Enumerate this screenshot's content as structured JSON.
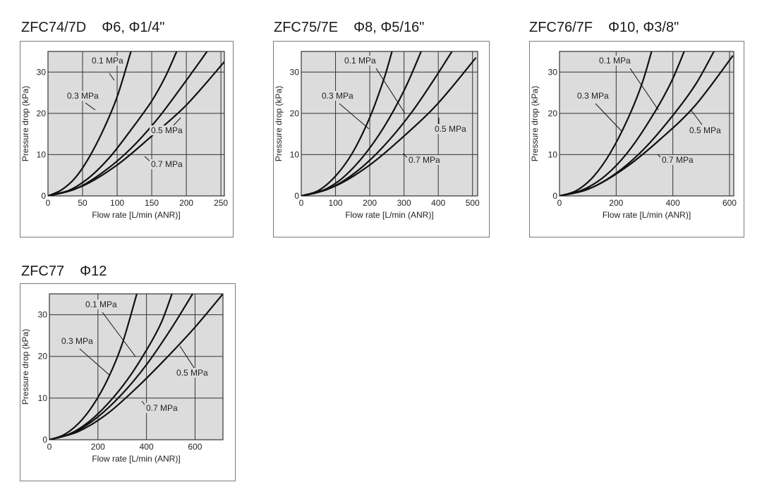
{
  "colors": {
    "plot_bg": "#dcdcdc",
    "grid": "#333333",
    "curve": "#111111",
    "text": "#222222"
  },
  "chart_data": [
    {
      "type": "line",
      "model": "ZFC74/7D",
      "size": "Φ6, Φ1/4\"",
      "xlabel": "Flow rate [L/min (ANR)]",
      "ylabel": "Pressure drop (kPa)",
      "xlim": [
        0,
        255
      ],
      "ylim": [
        0,
        35
      ],
      "xticks": [
        0,
        50,
        100,
        150,
        200,
        250
      ],
      "yticks": [
        0,
        10,
        20,
        30
      ],
      "series": [
        {
          "name": "0.1 MPa",
          "x": [
            0,
            20,
            40,
            60,
            80,
            100,
            120
          ],
          "y": [
            0,
            1.5,
            4.5,
            9.5,
            16,
            24,
            35
          ]
        },
        {
          "name": "0.3 MPa",
          "x": [
            0,
            30,
            60,
            90,
            120,
            150,
            170,
            186
          ],
          "y": [
            0,
            1.3,
            4.5,
            9.5,
            16,
            23,
            29,
            35
          ]
        },
        {
          "name": "0.5 MPa",
          "x": [
            0,
            40,
            80,
            120,
            160,
            200,
            230
          ],
          "y": [
            0,
            1.7,
            5.8,
            11.5,
            19,
            28,
            35
          ]
        },
        {
          "name": "0.7 MPa",
          "x": [
            0,
            50,
            100,
            150,
            200,
            255
          ],
          "y": [
            0,
            2.4,
            7.5,
            14.5,
            22,
            32.5
          ]
        }
      ]
    },
    {
      "type": "line",
      "model": "ZFC75/7E",
      "size": "Φ8, Φ5/16\"",
      "xlabel": "Flow rate [L/min (ANR)]",
      "ylabel": "Pressure drop (kPa)",
      "xlim": [
        0,
        515
      ],
      "ylim": [
        0,
        35
      ],
      "xticks": [
        0,
        100,
        200,
        300,
        400,
        500
      ],
      "yticks": [
        0,
        10,
        20,
        30
      ],
      "series": [
        {
          "name": "0.1 MPa",
          "x": [
            0,
            50,
            100,
            150,
            200,
            240,
            265
          ],
          "y": [
            0,
            1.3,
            4.8,
            10.5,
            19,
            28,
            35
          ]
        },
        {
          "name": "0.3 MPa",
          "x": [
            0,
            60,
            120,
            180,
            240,
            300,
            350
          ],
          "y": [
            0,
            1.2,
            4.3,
            9.5,
            16.5,
            25.5,
            35
          ]
        },
        {
          "name": "0.5 MPa",
          "x": [
            0,
            80,
            160,
            240,
            320,
            390,
            440
          ],
          "y": [
            0,
            1.7,
            5.8,
            12,
            20,
            28.5,
            35
          ]
        },
        {
          "name": "0.7 MPa",
          "x": [
            0,
            100,
            200,
            300,
            400,
            510
          ],
          "y": [
            0,
            2.4,
            7.5,
            14.5,
            22.5,
            33.5
          ]
        }
      ]
    },
    {
      "type": "line",
      "model": "ZFC76/7F",
      "size": "Φ10, Φ3/8\"",
      "xlabel": "Flow rate [L/min (ANR)]",
      "ylabel": "Pressure drop (kPa)",
      "xlim": [
        0,
        615
      ],
      "ylim": [
        0,
        35
      ],
      "xticks": [
        0,
        200,
        400,
        600
      ],
      "yticks": [
        0,
        10,
        20,
        30
      ],
      "series": [
        {
          "name": "0.1 MPa",
          "x": [
            0,
            60,
            120,
            180,
            240,
            290,
            325
          ],
          "y": [
            0,
            1.3,
            4.7,
            10.5,
            18.5,
            27,
            35
          ]
        },
        {
          "name": "0.3 MPa",
          "x": [
            0,
            80,
            160,
            240,
            320,
            390,
            440
          ],
          "y": [
            0,
            1.4,
            4.8,
            10.5,
            18.5,
            27,
            35
          ]
        },
        {
          "name": "0.5 MPa",
          "x": [
            0,
            100,
            200,
            300,
            400,
            480,
            545
          ],
          "y": [
            0,
            1.6,
            5.5,
            11.5,
            19.5,
            27,
            35
          ]
        },
        {
          "name": "0.7 MPa",
          "x": [
            0,
            120,
            240,
            360,
            480,
            612
          ],
          "y": [
            0,
            2.2,
            7.2,
            14,
            22,
            34
          ]
        }
      ]
    },
    {
      "type": "line",
      "model": "ZFC77",
      "size": "Φ12",
      "xlabel": "Flow rate [L/min (ANR)]",
      "ylabel": "Pressure drop (kPa)",
      "xlim": [
        0,
        715
      ],
      "ylim": [
        0,
        35
      ],
      "xticks": [
        0,
        200,
        400,
        600
      ],
      "yticks": [
        0,
        10,
        20,
        30
      ],
      "series": [
        {
          "name": "0.1 MPa",
          "x": [
            0,
            60,
            120,
            180,
            240,
            300,
            360
          ],
          "y": [
            0,
            1.2,
            3.9,
            8.3,
            14.5,
            23,
            35
          ]
        },
        {
          "name": "0.3 MPa",
          "x": [
            0,
            80,
            160,
            240,
            320,
            400,
            460,
            505
          ],
          "y": [
            0,
            1.3,
            4.2,
            8.6,
            14.3,
            21.5,
            28,
            35
          ]
        },
        {
          "name": "0.5 MPa",
          "x": [
            0,
            100,
            200,
            300,
            400,
            500,
            590
          ],
          "y": [
            0,
            1.7,
            5.5,
            11,
            18,
            26.5,
            35
          ]
        },
        {
          "name": "0.7 MPa",
          "x": [
            0,
            120,
            240,
            360,
            480,
            600,
            715
          ],
          "y": [
            0,
            2,
            6.3,
            12.5,
            19.5,
            27,
            35
          ]
        }
      ]
    }
  ]
}
